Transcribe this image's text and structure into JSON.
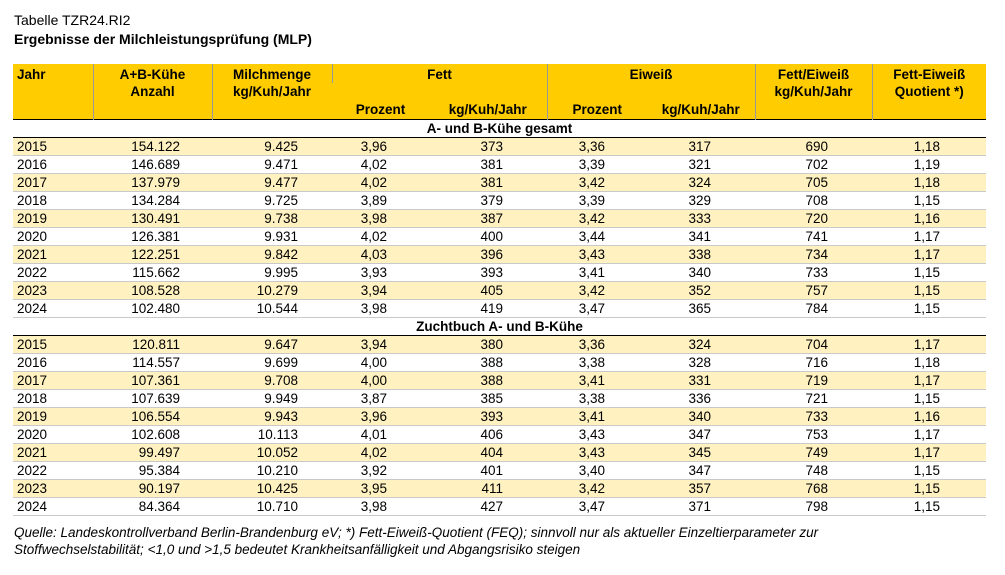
{
  "title": "Tabelle TZR24.RI2",
  "subtitle": "Ergebnisse der Milchleistungsprüfung (MLP)",
  "headers": {
    "jahr": "Jahr",
    "kuehe_l1": "A+B-Kühe",
    "kuehe_l2": "Anzahl",
    "milch_l1": "Milchmenge",
    "milch_l2": "kg/Kuh/Jahr",
    "fett": "Fett",
    "eiweiss": "Eiweiß",
    "fe_l1": "Fett/Eiweiß",
    "fe_l2": "kg/Kuh/Jahr",
    "quot_l1": "Fett-Eiweiß",
    "quot_l2": "Quotient *)",
    "prozent": "Prozent",
    "kgkuhjahr": "kg/Kuh/Jahr"
  },
  "sections": [
    {
      "title": "A- und B-Kühe gesamt",
      "rows": [
        [
          "2015",
          "154.122",
          "9.425",
          "3,96",
          "373",
          "3,36",
          "317",
          "690",
          "1,18"
        ],
        [
          "2016",
          "146.689",
          "9.471",
          "4,02",
          "381",
          "3,39",
          "321",
          "702",
          "1,19"
        ],
        [
          "2017",
          "137.979",
          "9.477",
          "4,02",
          "381",
          "3,42",
          "324",
          "705",
          "1,18"
        ],
        [
          "2018",
          "134.284",
          "9.725",
          "3,89",
          "379",
          "3,39",
          "329",
          "708",
          "1,15"
        ],
        [
          "2019",
          "130.491",
          "9.738",
          "3,98",
          "387",
          "3,42",
          "333",
          "720",
          "1,16"
        ],
        [
          "2020",
          "126.381",
          "9.931",
          "4,02",
          "400",
          "3,44",
          "341",
          "741",
          "1,17"
        ],
        [
          "2021",
          "122.251",
          "9.842",
          "4,03",
          "396",
          "3,43",
          "338",
          "734",
          "1,17"
        ],
        [
          "2022",
          "115.662",
          "9.995",
          "3,93",
          "393",
          "3,41",
          "340",
          "733",
          "1,15"
        ],
        [
          "2023",
          "108.528",
          "10.279",
          "3,94",
          "405",
          "3,42",
          "352",
          "757",
          "1,15"
        ],
        [
          "2024",
          "102.480",
          "10.544",
          "3,98",
          "419",
          "3,47",
          "365",
          "784",
          "1,15"
        ]
      ]
    },
    {
      "title": "Zuchtbuch A- und B-Kühe",
      "rows": [
        [
          "2015",
          "120.811",
          "9.647",
          "3,94",
          "380",
          "3,36",
          "324",
          "704",
          "1,17"
        ],
        [
          "2016",
          "114.557",
          "9.699",
          "4,00",
          "388",
          "3,38",
          "328",
          "716",
          "1,18"
        ],
        [
          "2017",
          "107.361",
          "9.708",
          "4,00",
          "388",
          "3,41",
          "331",
          "719",
          "1,17"
        ],
        [
          "2018",
          "107.639",
          "9.949",
          "3,87",
          "385",
          "3,38",
          "336",
          "721",
          "1,15"
        ],
        [
          "2019",
          "106.554",
          "9.943",
          "3,96",
          "393",
          "3,41",
          "340",
          "733",
          "1,16"
        ],
        [
          "2020",
          "102.608",
          "10.113",
          "4,01",
          "406",
          "3,43",
          "347",
          "753",
          "1,17"
        ],
        [
          "2021",
          "99.497",
          "10.052",
          "4,02",
          "404",
          "3,43",
          "345",
          "749",
          "1,17"
        ],
        [
          "2022",
          "95.384",
          "10.210",
          "3,92",
          "401",
          "3,40",
          "347",
          "748",
          "1,15"
        ],
        [
          "2023",
          "90.197",
          "10.425",
          "3,95",
          "411",
          "3,42",
          "357",
          "768",
          "1,15"
        ],
        [
          "2024",
          "84.364",
          "10.710",
          "3,98",
          "427",
          "3,47",
          "371",
          "798",
          "1,15"
        ]
      ]
    }
  ],
  "footnote_l1": "Quelle: Landeskontrollverband Berlin-Brandenburg eV; *) Fett-Eiweiß-Quotient (FEQ); sinnvoll nur als aktueller Einzeltierparameter zur",
  "footnote_l2": "Stoffwechselstabilität; <1,0 und >1,5 bedeutet Krankheitsanfälligkeit und Abgangsrisiko steigen",
  "colors": {
    "header_bg": "#FFCC00",
    "stripe_bg": "#FFF2C0"
  }
}
